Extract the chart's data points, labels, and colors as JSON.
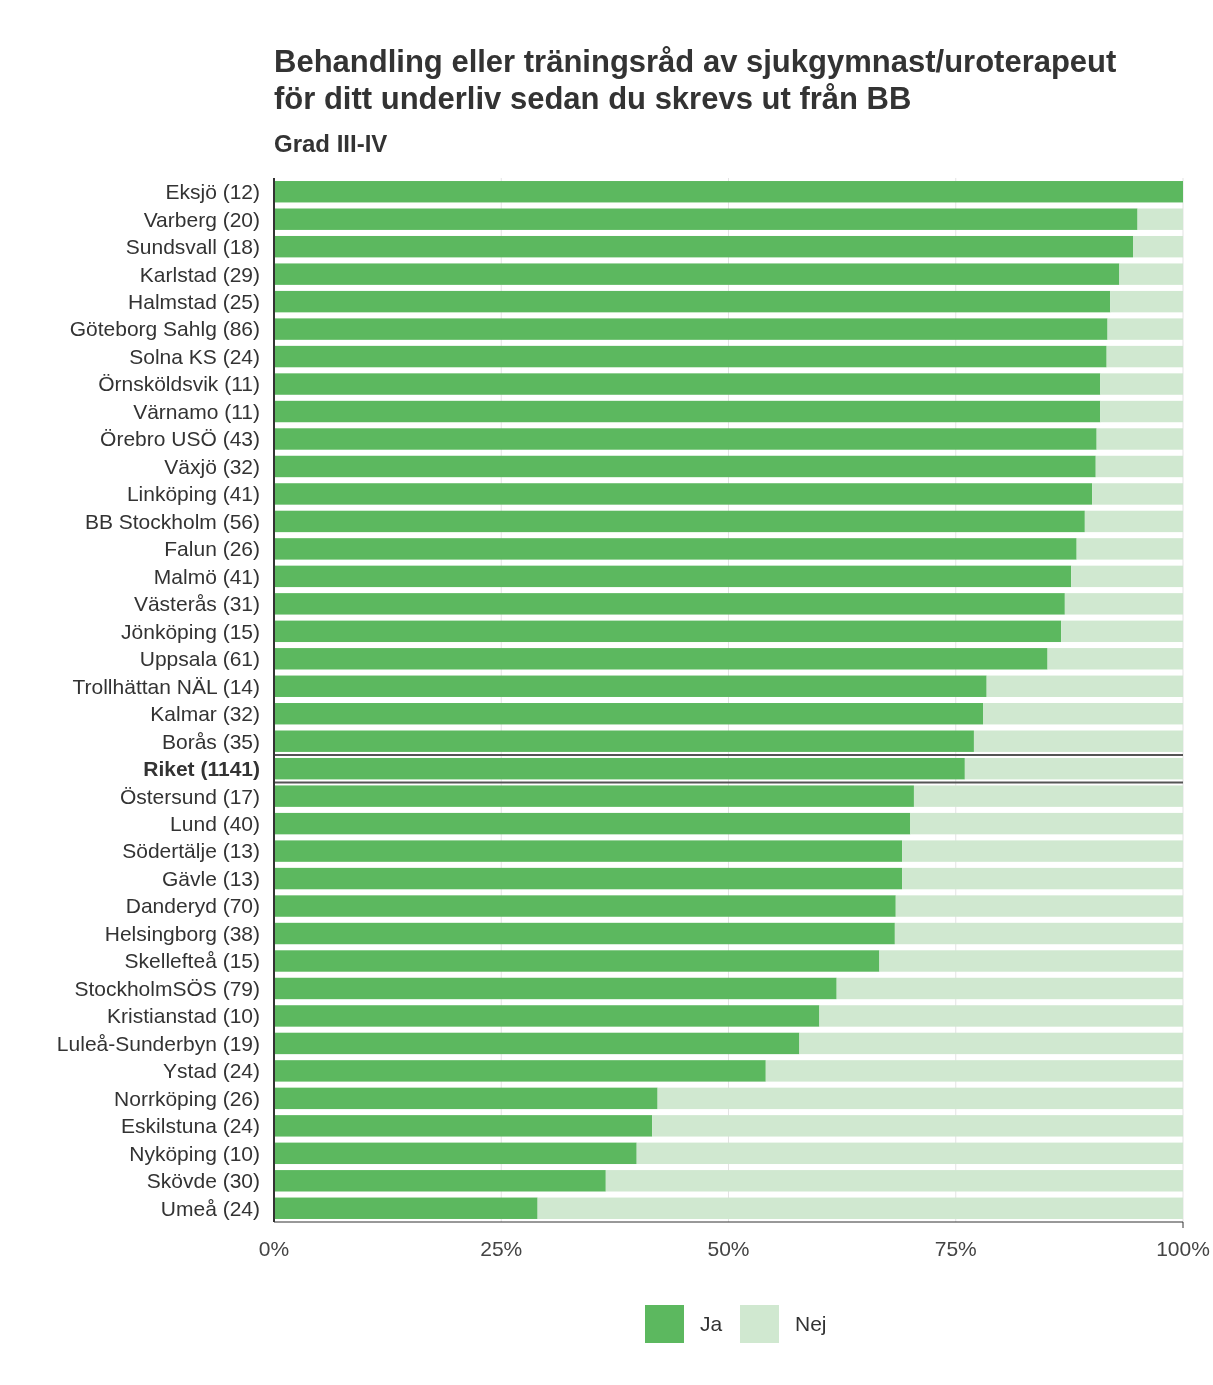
{
  "chart_data": {
    "type": "bar",
    "orientation": "horizontal",
    "stacked": true,
    "title": "Behandling eller träningsråd av sjukgymnast/uroterapeut\nför ditt underliv sedan du skrevs ut från BB",
    "subtitle": "Grad III-IV",
    "categories": [
      "Eksjö (12)",
      "Varberg (20)",
      "Sundsvall (18)",
      "Karlstad (29)",
      "Halmstad (25)",
      "Göteborg Sahlg (86)",
      "Solna KS (24)",
      "Örnsköldsvik (11)",
      "Värnamo (11)",
      "Örebro USÖ (43)",
      "Växjö (32)",
      "Linköping (41)",
      "BB Stockholm (56)",
      "Falun (26)",
      "Malmö (41)",
      "Västerås (31)",
      "Jönköping (15)",
      "Uppsala (61)",
      "Trollhättan NÄL (14)",
      "Kalmar (32)",
      "Borås (35)",
      "Riket (1141)",
      "Östersund (17)",
      "Lund (40)",
      "Södertälje (13)",
      "Gävle (13)",
      "Danderyd (70)",
      "Helsingborg (38)",
      "Skellefteå (15)",
      "StockholmSÖS (79)",
      "Kristianstad (10)",
      "Luleå-Sunderbyn (19)",
      "Ystad (24)",
      "Norrköping (26)",
      "Eskilstuna (24)",
      "Nyköping (10)",
      "Skövde (30)",
      "Umeå (24)"
    ],
    "series": [
      {
        "name": "Ja",
        "color": "#5cb85f",
        "values": [
          100,
          95,
          94.5,
          93,
          92,
          91.7,
          91.6,
          90.9,
          90.9,
          90.5,
          90.4,
          90,
          89.2,
          88.3,
          87.7,
          87,
          86.6,
          85.1,
          78.4,
          78,
          77,
          76,
          70.4,
          70,
          69.1,
          69.1,
          68.4,
          68.3,
          66.6,
          61.9,
          60,
          57.8,
          54.1,
          42.2,
          41.6,
          39.9,
          36.5,
          29
        ]
      },
      {
        "name": "Nej",
        "color": "#d0e8d0",
        "values": [
          0,
          5,
          5.5,
          7,
          8,
          8.3,
          8.4,
          9.1,
          9.1,
          9.5,
          9.6,
          10,
          10.8,
          11.7,
          12.3,
          13,
          13.4,
          14.9,
          21.6,
          22,
          23,
          24,
          29.6,
          30,
          30.9,
          30.9,
          31.6,
          31.7,
          33.4,
          38.1,
          40,
          42.2,
          45.9,
          57.8,
          58.4,
          60.1,
          63.5,
          71
        ]
      }
    ],
    "xlim": [
      0,
      100
    ],
    "xticks": [
      {
        "value": 0,
        "label": "0%"
      },
      {
        "value": 25,
        "label": "25%"
      },
      {
        "value": 50,
        "label": "50%"
      },
      {
        "value": 75,
        "label": "75%"
      },
      {
        "value": 100,
        "label": "100%"
      }
    ],
    "grid": "x",
    "legend": "bottom"
  }
}
